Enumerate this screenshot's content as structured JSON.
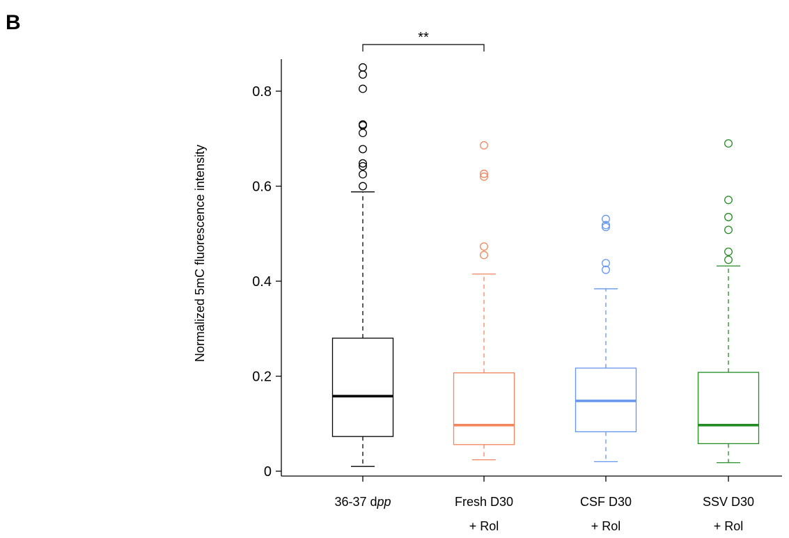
{
  "panel_label": "B",
  "chart_data": {
    "type": "box",
    "title": "",
    "ylabel": "Normalized 5mC fluorescence intensity",
    "xlabel": "",
    "ylim": [
      0,
      0.87
    ],
    "yticks": [
      0,
      0.2,
      0.4,
      0.6,
      0.8
    ],
    "ytick_labels": [
      "0",
      "0.2",
      "0.4",
      "0.6",
      "0.8"
    ],
    "grid": false,
    "legend": "none",
    "groups": [
      {
        "label_line1": "36-37 d",
        "label_line1_italic": "pp",
        "label_line2": "",
        "color": "#000000",
        "whisker_low": 0.01,
        "q1": 0.073,
        "median": 0.158,
        "q3": 0.28,
        "whisker_high": 0.588,
        "outliers": [
          0.85,
          0.835,
          0.805,
          0.73,
          0.728,
          0.712,
          0.678,
          0.648,
          0.642,
          0.625,
          0.6
        ]
      },
      {
        "label_line1": "Fresh D30",
        "label_line1_italic": "",
        "label_line2": "+ Rol",
        "color": "#f4845c",
        "whisker_low": 0.024,
        "q1": 0.056,
        "median": 0.097,
        "q3": 0.207,
        "whisker_high": 0.415,
        "outliers": [
          0.686,
          0.626,
          0.62,
          0.473,
          0.455
        ]
      },
      {
        "label_line1": "CSF D30",
        "label_line1_italic": "",
        "label_line2": "+ Rol",
        "color": "#6495ed",
        "whisker_low": 0.02,
        "q1": 0.083,
        "median": 0.148,
        "q3": 0.217,
        "whisker_high": 0.384,
        "outliers": [
          0.531,
          0.518,
          0.514,
          0.438,
          0.424
        ]
      },
      {
        "label_line1": "SSV D30",
        "label_line1_italic": "",
        "label_line2": "+ Rol",
        "color": "#228b22",
        "whisker_low": 0.018,
        "q1": 0.058,
        "median": 0.097,
        "q3": 0.208,
        "whisker_high": 0.432,
        "outliers": [
          0.69,
          0.571,
          0.535,
          0.508,
          0.462,
          0.445
        ]
      }
    ],
    "annotations": [
      {
        "text": "**",
        "from_group": 0,
        "to_group": 1
      }
    ]
  }
}
